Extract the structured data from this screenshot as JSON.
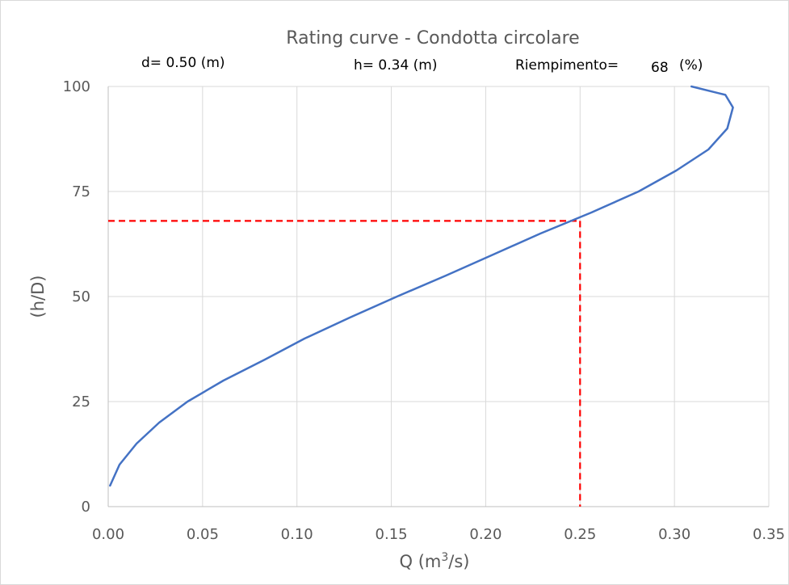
{
  "chart_data": {
    "type": "line",
    "title": "Rating curve - Condotta circolare",
    "header": {
      "d_label": "d= 0.50  (m)",
      "h_label": "h=  0.34 (m)",
      "fill_label": "Riempimento=",
      "fill_value": "68",
      "fill_unit": "(%)"
    },
    "xlabel": "Q (m",
    "xlabel_sup": "3",
    "xlabel_end": "/s)",
    "ylabel": "(h/D)",
    "xlim": [
      0,
      0.35
    ],
    "ylim": [
      0,
      100
    ],
    "x_ticks": [
      "0.00",
      "0.05",
      "0.10",
      "0.15",
      "0.20",
      "0.25",
      "0.30",
      "0.35"
    ],
    "y_ticks": [
      "0",
      "25",
      "50",
      "75",
      "100"
    ],
    "grid": true,
    "series": [
      {
        "color": "#4472c4",
        "points": [
          [
            0.001,
            5
          ],
          [
            0.006,
            10
          ],
          [
            0.015,
            15
          ],
          [
            0.027,
            20
          ],
          [
            0.042,
            25
          ],
          [
            0.061,
            30
          ],
          [
            0.083,
            35
          ],
          [
            0.104,
            40
          ],
          [
            0.128,
            45
          ],
          [
            0.153,
            50
          ],
          [
            0.179,
            55
          ],
          [
            0.204,
            60
          ],
          [
            0.229,
            65
          ],
          [
            0.256,
            70
          ],
          [
            0.281,
            75
          ],
          [
            0.301,
            80
          ],
          [
            0.318,
            85
          ],
          [
            0.328,
            90
          ],
          [
            0.331,
            95
          ],
          [
            0.327,
            98
          ],
          [
            0.309,
            100
          ]
        ]
      }
    ],
    "reference_lines": {
      "color": "#ff0000",
      "x": 0.25,
      "y": 68
    }
  }
}
